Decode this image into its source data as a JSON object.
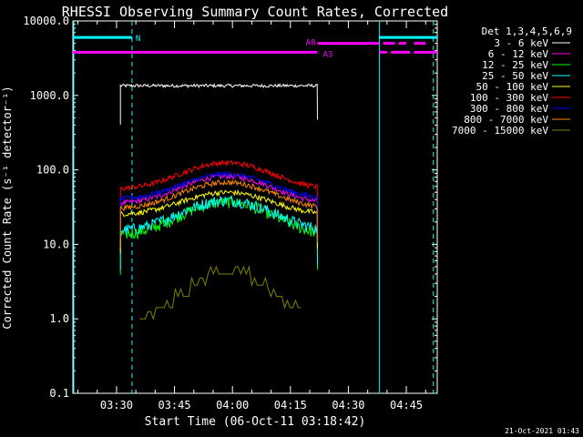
{
  "chart_data": {
    "type": "line",
    "title": "RHESSI Observing Summary Count Rates, Corrected",
    "xlabel": "Start Time (06-Oct-11 03:18:42)",
    "ylabel": "Corrected Count Rate (s⁻¹ detector⁻¹)",
    "yscale": "log",
    "ylim": [
      0.1,
      10000
    ],
    "xlim": [
      "03:18:42",
      "04:53:00"
    ],
    "x_tick_labels": [
      "03:30",
      "03:45",
      "04:00",
      "04:15",
      "04:30",
      "04:45"
    ],
    "y_tick_labels": [
      "0.1",
      "1.0",
      "10.0",
      "100.0",
      "1000.0",
      "10000.0"
    ],
    "legend_title": "Det 1,3,4,5,6,9",
    "legend_position": "right",
    "series": [
      {
        "name": "3 - 6 keV",
        "color": "#ffffff",
        "start": "03:31",
        "end": "04:22",
        "base": 1350,
        "peak": 1350
      },
      {
        "name": "6 - 12 keV",
        "color": "#ff00ff",
        "start": "03:31",
        "end": "04:22",
        "base": 35,
        "peak": 82
      },
      {
        "name": "12 - 25 keV",
        "color": "#00ff00",
        "start": "03:31",
        "end": "04:22",
        "base": 13,
        "peak": 37
      },
      {
        "name": "25 - 50 keV",
        "color": "#00ffff",
        "start": "03:31",
        "end": "04:22",
        "base": 15,
        "peak": 39
      },
      {
        "name": "50 - 100 keV",
        "color": "#ffff00",
        "start": "03:31",
        "end": "04:22",
        "base": 25,
        "peak": 50
      },
      {
        "name": "100 - 300 keV",
        "color": "#ff0000",
        "start": "03:31",
        "end": "04:22",
        "base": 55,
        "peak": 125
      },
      {
        "name": "300 - 800 keV",
        "color": "#0000ff",
        "start": "03:31",
        "end": "04:22",
        "base": 40,
        "peak": 88
      },
      {
        "name": "800 - 7000 keV",
        "color": "#ff8800",
        "start": "03:31",
        "end": "04:22",
        "base": 30,
        "peak": 68
      },
      {
        "name": "7000 - 15000 keV",
        "color": "#808000",
        "start": "03:36",
        "end": "04:18",
        "base": 1.0,
        "peak": 4.0
      }
    ],
    "flag_bars": [
      {
        "label": "N",
        "color": "#00ffff",
        "y": 6000,
        "segments": [
          [
            "03:18:42",
            "03:34"
          ],
          [
            "04:38",
            "04:53"
          ]
        ]
      },
      {
        "label": "A0",
        "color": "#ff00ff",
        "y": 5000,
        "segments": [
          [
            "04:22",
            "04:38"
          ],
          [
            "04:39",
            "04:42"
          ],
          [
            "04:43",
            "04:45"
          ],
          [
            "04:47",
            "04:50"
          ]
        ]
      },
      {
        "label": "A3",
        "color": "#ff00ff",
        "y": 3800,
        "segments": [
          [
            "03:18:42",
            "04:22"
          ],
          [
            "04:38",
            "04:40"
          ],
          [
            "04:41",
            "04:46"
          ],
          [
            "04:47",
            "04:53"
          ]
        ]
      }
    ],
    "vertical_lines": [
      {
        "time": "03:34",
        "style": "dashed",
        "color": "#00ffff"
      },
      {
        "time": "04:38",
        "style": "solid",
        "color": "#00ffff"
      },
      {
        "time": "04:52",
        "style": "dashed",
        "color": "#00ffff"
      }
    ],
    "footer_date": "21-Oct-2021 01:43"
  }
}
